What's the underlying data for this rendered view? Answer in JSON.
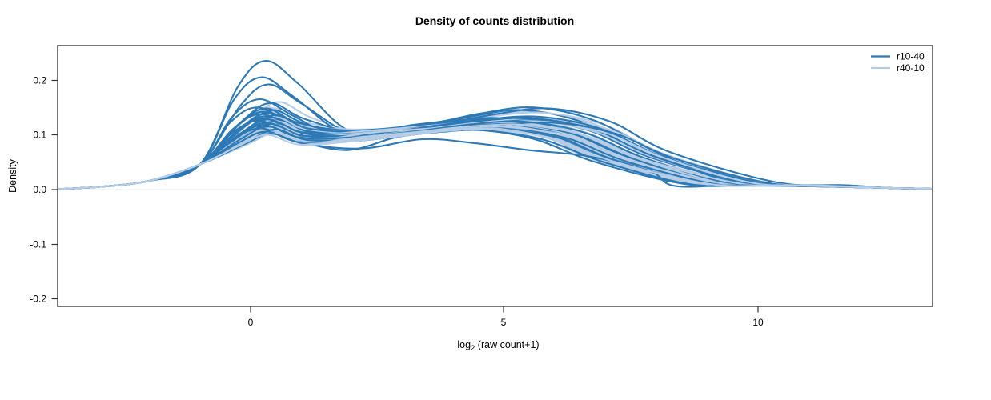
{
  "title": "Density of counts distribution",
  "colors": {
    "dark_blue": "#2d79b5",
    "light_blue": "#b5cde6",
    "zero_line": "#ebebeb",
    "box_border": "#555555",
    "tick": "#333333"
  },
  "legend": {
    "items": [
      {
        "label": "r10-40",
        "color": "#2d79b5"
      },
      {
        "label": "r40-10",
        "color": "#b5cde6"
      }
    ]
  },
  "axes": {
    "x": {
      "label_prefix": "log",
      "label_sub": "2",
      "label_suffix": " (raw count+1)",
      "ticks": [
        "0",
        "5",
        "10"
      ]
    },
    "y": {
      "label": "Density",
      "ticks": [
        "0.2",
        "0.1",
        "0.0",
        "-0.1",
        "-0.2"
      ]
    }
  },
  "chart_data": {
    "type": "line",
    "subtype": "kernel-density-curves",
    "title": "Density of counts distribution",
    "xlabel": "log2 (raw count+1)",
    "ylabel": "Density",
    "xlim": [
      -3.8,
      13.5
    ],
    "ylim": [
      -0.213,
      0.263
    ],
    "x_ticks": [
      0,
      5,
      10
    ],
    "y_ticks": [
      0.2,
      0.1,
      0.0,
      -0.1,
      -0.2
    ],
    "grid": false,
    "legend_position": "top-right",
    "zero_baseline": 0,
    "curve_param_keys": [
      "peak1_x",
      "peak1_density",
      "dip_x",
      "dip_density",
      "mid_x",
      "mid_density",
      "peak2_x",
      "peak2_density",
      "tail_zero_x"
    ],
    "series": [
      {
        "name": "r10-40",
        "color": "#2d79b5",
        "curves": [
          [
            0.3,
            0.235,
            2.0,
            0.105,
            3.2,
            0.118,
            5.0,
            0.128,
            9.6
          ],
          [
            0.22,
            0.205,
            1.9,
            0.1,
            3.0,
            0.11,
            4.8,
            0.122,
            9.3
          ],
          [
            0.35,
            0.192,
            2.1,
            0.098,
            3.3,
            0.108,
            5.2,
            0.118,
            9.8
          ],
          [
            0.18,
            0.165,
            1.8,
            0.095,
            3.1,
            0.112,
            4.6,
            0.126,
            9.0
          ],
          [
            0.4,
            0.158,
            2.2,
            0.102,
            3.4,
            0.115,
            5.4,
            0.145,
            10.0
          ],
          [
            0.12,
            0.15,
            1.7,
            0.09,
            2.9,
            0.105,
            4.5,
            0.12,
            8.8
          ],
          [
            0.3,
            0.148,
            2.0,
            0.108,
            3.5,
            0.12,
            5.6,
            0.15,
            9.5
          ],
          [
            0.45,
            0.145,
            2.3,
            0.095,
            3.6,
            0.11,
            5.8,
            0.125,
            10.2
          ],
          [
            0.25,
            0.142,
            1.9,
            0.1,
            3.2,
            0.115,
            5.0,
            0.13,
            9.2
          ],
          [
            0.35,
            0.14,
            2.1,
            0.092,
            3.3,
            0.104,
            5.3,
            0.115,
            9.7
          ],
          [
            0.2,
            0.138,
            1.8,
            0.098,
            3.0,
            0.11,
            4.7,
            0.124,
            8.9
          ],
          [
            0.5,
            0.136,
            2.4,
            0.105,
            3.7,
            0.118,
            5.9,
            0.148,
            10.4
          ],
          [
            0.3,
            0.134,
            2.0,
            0.09,
            3.1,
            0.1,
            4.9,
            0.112,
            9.4
          ],
          [
            0.4,
            0.132,
            2.2,
            0.1,
            3.4,
            0.112,
            5.5,
            0.128,
            9.9
          ],
          [
            0.25,
            0.13,
            1.9,
            0.095,
            3.2,
            0.108,
            5.1,
            0.122,
            9.1
          ],
          [
            0.35,
            0.128,
            2.1,
            0.102,
            3.5,
            0.115,
            5.7,
            0.133,
            9.6
          ],
          [
            0.15,
            0.126,
            1.7,
            0.088,
            2.8,
            0.098,
            4.4,
            0.11,
            8.6
          ],
          [
            0.45,
            0.124,
            2.3,
            0.098,
            3.6,
            0.11,
            5.8,
            0.126,
            10.1
          ],
          [
            0.3,
            0.122,
            2.0,
            0.094,
            3.3,
            0.106,
            5.2,
            0.12,
            9.3
          ],
          [
            0.4,
            0.12,
            2.2,
            0.1,
            3.5,
            0.114,
            5.6,
            0.13,
            9.8
          ],
          [
            0.25,
            0.118,
            1.8,
            0.09,
            3.0,
            0.102,
            4.8,
            0.116,
            9.0
          ],
          [
            0.35,
            0.115,
            2.1,
            0.096,
            3.4,
            0.108,
            5.4,
            0.124,
            9.5
          ],
          [
            0.18,
            0.112,
            1.9,
            0.072,
            2.9,
            0.096,
            4.6,
            0.108,
            8.7
          ],
          [
            0.5,
            0.11,
            2.4,
            0.094,
            3.7,
            0.106,
            6.0,
            0.122,
            10.3
          ],
          [
            0.3,
            0.106,
            2.0,
            0.088,
            3.2,
            0.1,
            5.0,
            0.114,
            9.2
          ],
          [
            0.4,
            0.102,
            2.2,
            0.075,
            3.4,
            0.092,
            5.5,
            0.072,
            8.4
          ]
        ]
      },
      {
        "name": "r40-10",
        "color": "#b5cde6",
        "curves": [
          [
            0.55,
            0.16,
            2.2,
            0.105,
            3.4,
            0.115,
            5.3,
            0.128,
            9.8
          ],
          [
            0.35,
            0.15,
            2.0,
            0.1,
            3.2,
            0.11,
            5.0,
            0.122,
            9.4
          ],
          [
            0.5,
            0.148,
            2.3,
            0.108,
            3.6,
            0.118,
            5.6,
            0.142,
            10.0
          ],
          [
            0.3,
            0.145,
            1.9,
            0.095,
            3.1,
            0.108,
            4.8,
            0.12,
            9.1
          ],
          [
            0.4,
            0.142,
            2.1,
            0.102,
            3.3,
            0.112,
            5.2,
            0.126,
            9.6
          ],
          [
            0.55,
            0.14,
            2.4,
            0.11,
            3.7,
            0.12,
            5.8,
            0.14,
            10.2
          ],
          [
            0.35,
            0.138,
            2.0,
            0.098,
            3.2,
            0.108,
            5.0,
            0.12,
            9.3
          ],
          [
            0.45,
            0.136,
            2.2,
            0.104,
            3.5,
            0.114,
            5.5,
            0.128,
            9.9
          ],
          [
            0.3,
            0.134,
            1.9,
            0.094,
            3.0,
            0.104,
            4.7,
            0.116,
            9.0
          ],
          [
            0.5,
            0.132,
            2.3,
            0.106,
            3.6,
            0.116,
            5.7,
            0.13,
            10.1
          ],
          [
            0.4,
            0.13,
            2.1,
            0.1,
            3.3,
            0.11,
            5.2,
            0.122,
            9.5
          ],
          [
            0.35,
            0.128,
            2.0,
            0.096,
            3.1,
            0.106,
            4.9,
            0.118,
            9.2
          ],
          [
            0.45,
            0.126,
            2.2,
            0.102,
            3.4,
            0.112,
            5.4,
            0.125,
            9.7
          ],
          [
            0.55,
            0.124,
            2.4,
            0.108,
            3.7,
            0.118,
            5.9,
            0.13,
            10.3
          ],
          [
            0.3,
            0.122,
            1.9,
            0.092,
            3.0,
            0.102,
            4.6,
            0.114,
            8.9
          ],
          [
            0.4,
            0.12,
            2.1,
            0.098,
            3.2,
            0.108,
            5.1,
            0.12,
            9.4
          ],
          [
            0.5,
            0.118,
            2.3,
            0.104,
            3.5,
            0.114,
            5.6,
            0.126,
            9.9
          ],
          [
            0.35,
            0.116,
            2.0,
            0.094,
            3.1,
            0.104,
            4.8,
            0.116,
            9.1
          ],
          [
            0.45,
            0.114,
            2.2,
            0.1,
            3.4,
            0.11,
            5.3,
            0.122,
            9.6
          ],
          [
            0.28,
            0.112,
            1.9,
            0.09,
            2.9,
            0.1,
            4.5,
            0.112,
            8.8
          ],
          [
            0.55,
            0.11,
            2.4,
            0.104,
            3.6,
            0.112,
            5.8,
            0.124,
            10.0
          ],
          [
            0.4,
            0.108,
            2.1,
            0.094,
            3.2,
            0.104,
            5.0,
            0.116,
            9.3
          ],
          [
            0.35,
            0.106,
            2.0,
            0.09,
            3.0,
            0.1,
            4.7,
            0.112,
            9.0
          ],
          [
            0.5,
            0.104,
            2.2,
            0.096,
            3.4,
            0.106,
            5.4,
            0.118,
            9.7
          ],
          [
            0.45,
            0.102,
            2.1,
            0.092,
            3.3,
            0.102,
            5.1,
            0.114,
            9.4
          ],
          [
            0.32,
            0.1,
            2.0,
            0.088,
            3.0,
            0.098,
            4.8,
            0.11,
            9.1
          ]
        ]
      }
    ]
  }
}
